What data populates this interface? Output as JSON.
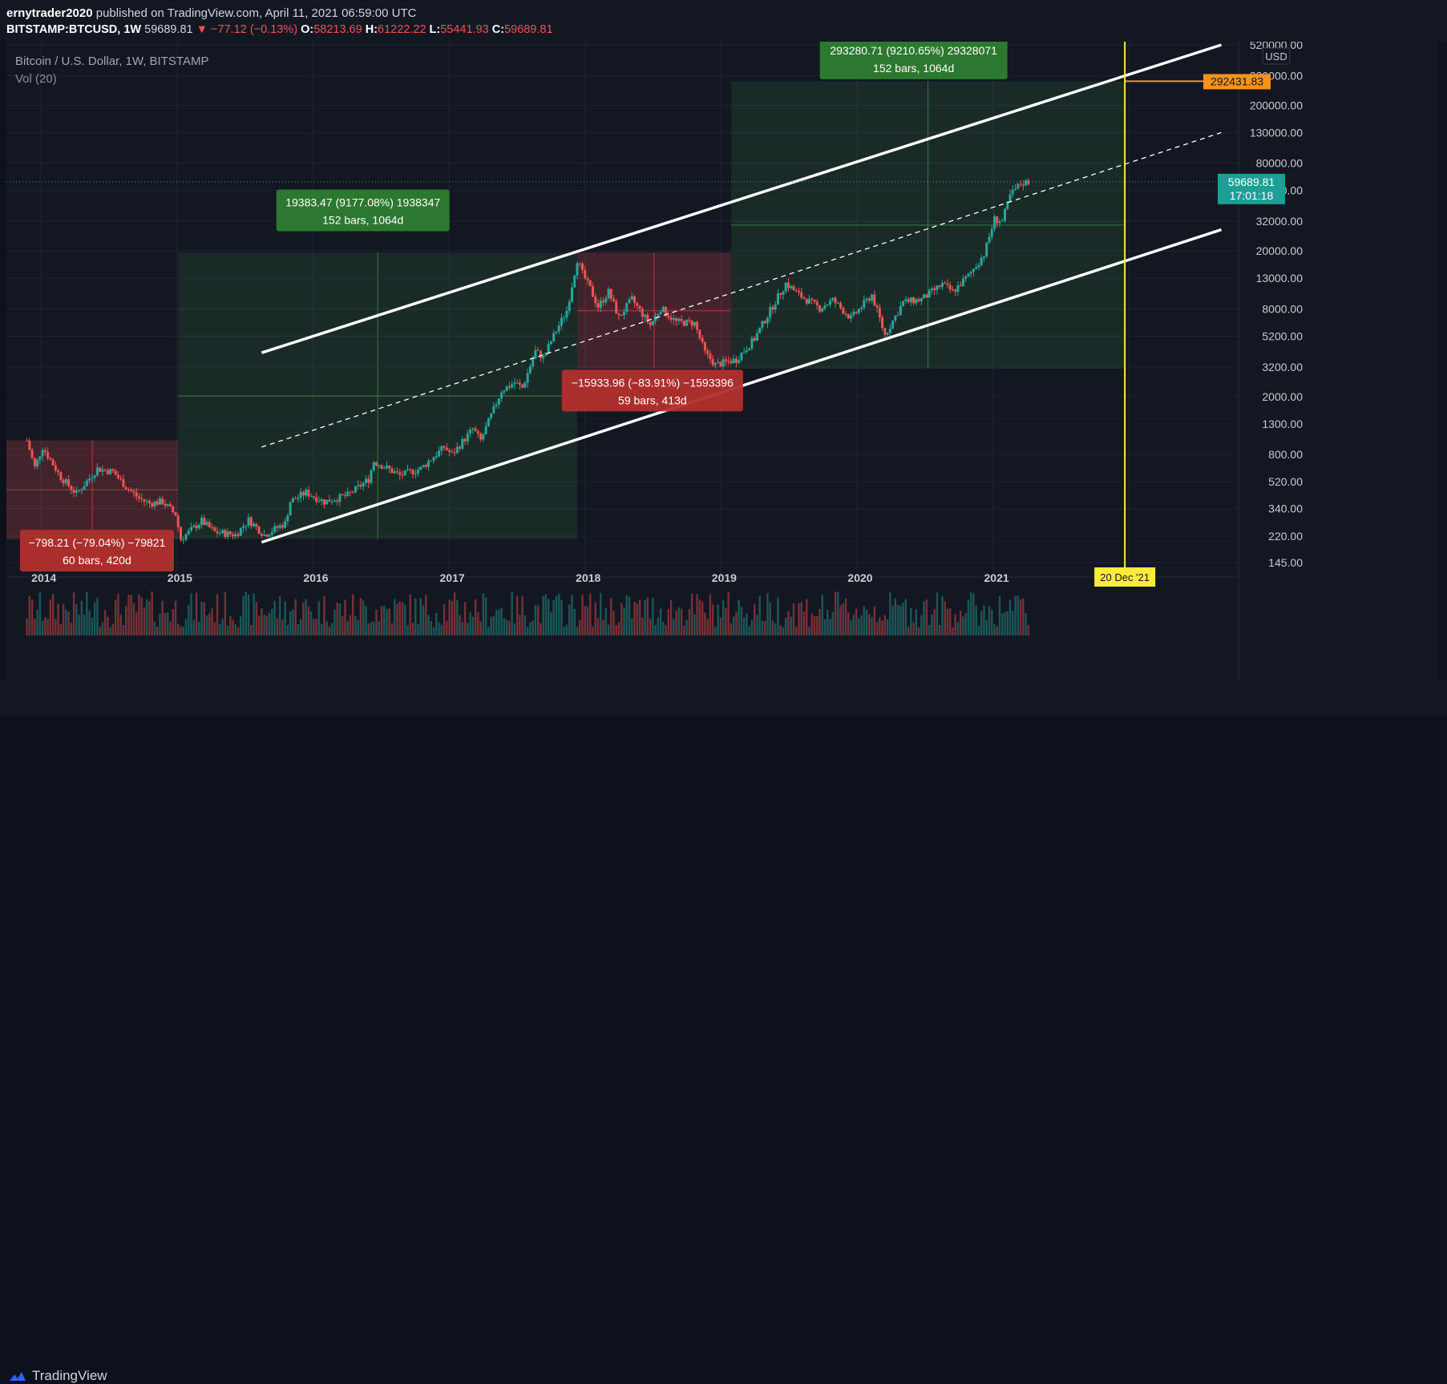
{
  "header": {
    "author": "ernytrader2020",
    "published": "published on TradingView.com, April 11, 2021 06:59:00 UTC",
    "symbol": "BITSTAMP:BTCUSD, 1W",
    "last": "59689.81",
    "change": "−77.12 (−0.13%)",
    "o_label": "O:",
    "o": "58213.69",
    "h_label": "H:",
    "h": "61222.22",
    "l_label": "L:",
    "l": "55441.93",
    "c_label": "C:",
    "c": "59689.81"
  },
  "legend": {
    "title": "Bitcoin / U.S. Dollar, 1W, BITSTAMP",
    "volume": "Vol (20)"
  },
  "footer": {
    "brand": "TradingView"
  },
  "colors": {
    "up": "#26a69a",
    "down": "#ef5350",
    "bg": "#131722",
    "channel": "#ffffff",
    "vline": "#ffeb3b",
    "target": "#f7931a"
  },
  "chart_data": {
    "type": "candlestick",
    "title": "Bitcoin / U.S. Dollar, 1W, BITSTAMP",
    "scale": "log",
    "currency": "USD",
    "ylim": [
      145,
      520000
    ],
    "xlim": [
      "2013-10-01",
      "2022-11-01"
    ],
    "grid": true,
    "x_ticks": [
      "2014",
      "2015",
      "2016",
      "2017",
      "2018",
      "2019",
      "2020",
      "2021",
      "2022"
    ],
    "y_ticks": [
      "520000.00",
      "320000.00",
      "200000.00",
      "130000.00",
      "80000.00",
      "52000.00",
      "32000.00",
      "20000.00",
      "13000.00",
      "8000.00",
      "5200.00",
      "3200.00",
      "2000.00",
      "1300.00",
      "800.00",
      "520.00",
      "340.00",
      "220.00",
      "145.00"
    ],
    "price_series": [
      [
        "2013-11-25",
        1000
      ],
      [
        "2013-12-16",
        650
      ],
      [
        "2014-01-06",
        900
      ],
      [
        "2014-02-24",
        560
      ],
      [
        "2014-04-07",
        430
      ],
      [
        "2014-06-02",
        640
      ],
      [
        "2014-07-14",
        610
      ],
      [
        "2014-08-18",
        480
      ],
      [
        "2014-09-22",
        400
      ],
      [
        "2014-10-20",
        370
      ],
      [
        "2014-11-24",
        380
      ],
      [
        "2014-12-29",
        310
      ],
      [
        "2015-01-12",
        210
      ],
      [
        "2015-03-09",
        280
      ],
      [
        "2015-04-13",
        235
      ],
      [
        "2015-06-08",
        225
      ],
      [
        "2015-07-13",
        285
      ],
      [
        "2015-08-24",
        225
      ],
      [
        "2015-10-19",
        270
      ],
      [
        "2015-11-02",
        380
      ],
      [
        "2015-12-14",
        440
      ],
      [
        "2016-02-01",
        380
      ],
      [
        "2016-04-04",
        420
      ],
      [
        "2016-05-30",
        540
      ],
      [
        "2016-06-13",
        720
      ],
      [
        "2016-07-11",
        660
      ],
      [
        "2016-08-22",
        575
      ],
      [
        "2016-10-17",
        640
      ],
      [
        "2016-12-19",
        900
      ],
      [
        "2017-01-09",
        800
      ],
      [
        "2017-03-06",
        1200
      ],
      [
        "2017-03-27",
        1000
      ],
      [
        "2017-05-22",
        2200
      ],
      [
        "2017-06-26",
        2500
      ],
      [
        "2017-07-17",
        2300
      ],
      [
        "2017-08-21",
        4100
      ],
      [
        "2017-09-11",
        3700
      ],
      [
        "2017-10-16",
        5700
      ],
      [
        "2017-11-13",
        7800
      ],
      [
        "2017-12-11",
        17500
      ],
      [
        "2017-12-25",
        14000
      ],
      [
        "2018-01-15",
        11000
      ],
      [
        "2018-02-05",
        8300
      ],
      [
        "2018-03-05",
        10500
      ],
      [
        "2018-04-02",
        7000
      ],
      [
        "2018-05-07",
        9300
      ],
      [
        "2018-06-25",
        6200
      ],
      [
        "2018-07-23",
        8100
      ],
      [
        "2018-09-03",
        6500
      ],
      [
        "2018-10-22",
        6400
      ],
      [
        "2018-11-19",
        4000
      ],
      [
        "2018-12-17",
        3300
      ],
      [
        "2019-02-11",
        3600
      ],
      [
        "2019-04-01",
        5000
      ],
      [
        "2019-05-13",
        7800
      ],
      [
        "2019-06-24",
        12000
      ],
      [
        "2019-07-29",
        10000
      ],
      [
        "2019-09-23",
        8100
      ],
      [
        "2019-10-28",
        9200
      ],
      [
        "2019-12-16",
        6900
      ],
      [
        "2020-02-10",
        10000
      ],
      [
        "2020-03-16",
        5300
      ],
      [
        "2020-05-04",
        8900
      ],
      [
        "2020-06-22",
        9300
      ],
      [
        "2020-08-17",
        11800
      ],
      [
        "2020-09-14",
        10500
      ],
      [
        "2020-10-26",
        13500
      ],
      [
        "2020-12-07",
        19000
      ],
      [
        "2021-01-04",
        33000
      ],
      [
        "2021-01-25",
        32000
      ],
      [
        "2021-02-15",
        48000
      ],
      [
        "2021-03-15",
        58000
      ],
      [
        "2021-04-05",
        59689.81
      ]
    ],
    "channel": {
      "upper": {
        "from": [
          "2015-08-17",
          4000
        ],
        "to": [
          "2022-09-05",
          520000
        ]
      },
      "middle": {
        "from": [
          "2015-08-17",
          900
        ],
        "to": [
          "2022-09-05",
          130000
        ]
      },
      "lower": {
        "from": [
          "2015-08-17",
          200
        ],
        "to": [
          "2022-09-05",
          28000
        ]
      }
    },
    "vertical_marker": {
      "date": "2021-12-20",
      "label": "20 Dec '21"
    },
    "last_price_label": {
      "value": "59689.81",
      "countdown": "17:01:18"
    },
    "target_label": "292431.83",
    "axis_unit_label": "USD",
    "measurements": [
      {
        "line1": "−798.21 (−79.04%) −79821",
        "line2": "60 bars, 420d",
        "kind": "down"
      },
      {
        "line1": "19383.47 (9177.08%) 1938347",
        "line2": "152 bars, 1064d",
        "kind": "up"
      },
      {
        "line1": "−15933.96 (−83.91%) −1593396",
        "line2": "59 bars, 413d",
        "kind": "down"
      },
      {
        "line1": "293280.71 (9210.65%) 29328071",
        "line2": "152 bars, 1064d",
        "kind": "up"
      }
    ]
  }
}
